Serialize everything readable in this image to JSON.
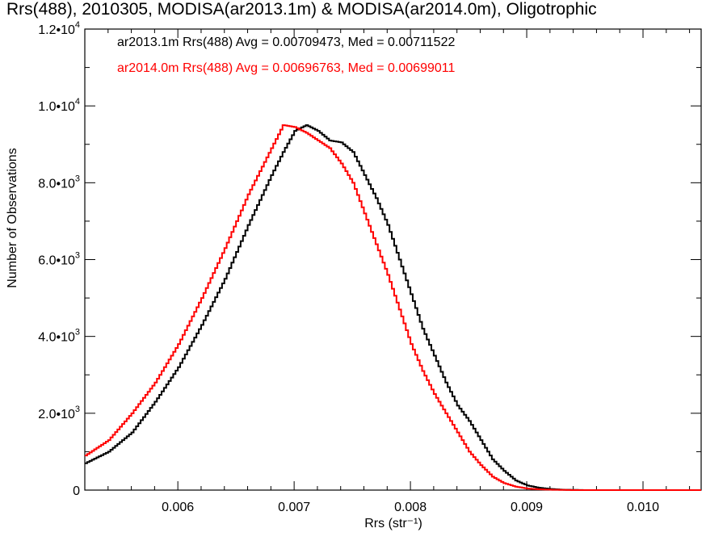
{
  "chart_data": {
    "type": "line",
    "title": "Rrs(488), 2010305, MODISA(ar2013.1m) & MODISA(ar2014.0m), Oligotrophic",
    "xlabel": "Rrs (str⁻¹)",
    "ylabel": "Number of Observations",
    "xlim": [
      0.0052,
      0.0105
    ],
    "ylim": [
      0,
      12000
    ],
    "x_ticks": [
      0.006,
      0.007,
      0.008,
      0.009,
      0.01
    ],
    "x_tick_labels": [
      "0.006",
      "0.007",
      "0.008",
      "0.009",
      "0.010"
    ],
    "y_ticks": [
      0,
      2000,
      4000,
      6000,
      8000,
      10000,
      12000
    ],
    "y_tick_labels": [
      {
        "base": "0",
        "exp": ""
      },
      {
        "base": "2.0•10",
        "exp": "3"
      },
      {
        "base": "4.0•10",
        "exp": "3"
      },
      {
        "base": "6.0•10",
        "exp": "3"
      },
      {
        "base": "8.0•10",
        "exp": "3"
      },
      {
        "base": "1.0•10",
        "exp": "4"
      },
      {
        "base": "1.2•10",
        "exp": "4"
      }
    ],
    "series": [
      {
        "name": "ar2013.1m Rrs(488) Avg = 0.00709473, Med = 0.00711522",
        "color": "#000000",
        "points": [
          [
            0.0052,
            700
          ],
          [
            0.0054,
            1000
          ],
          [
            0.0056,
            1500
          ],
          [
            0.0058,
            2300
          ],
          [
            0.006,
            3200
          ],
          [
            0.0062,
            4300
          ],
          [
            0.0064,
            5500
          ],
          [
            0.0066,
            6900
          ],
          [
            0.0068,
            8200
          ],
          [
            0.0069,
            8800
          ],
          [
            0.007,
            9350
          ],
          [
            0.0071,
            9500
          ],
          [
            0.0072,
            9350
          ],
          [
            0.0073,
            9100
          ],
          [
            0.0074,
            9050
          ],
          [
            0.0075,
            8800
          ],
          [
            0.0076,
            8200
          ],
          [
            0.0077,
            7600
          ],
          [
            0.0078,
            6900
          ],
          [
            0.0079,
            6000
          ],
          [
            0.008,
            5100
          ],
          [
            0.0081,
            4200
          ],
          [
            0.0082,
            3500
          ],
          [
            0.0083,
            2800
          ],
          [
            0.0084,
            2200
          ],
          [
            0.0085,
            1800
          ],
          [
            0.0086,
            1300
          ],
          [
            0.0087,
            800
          ],
          [
            0.0088,
            500
          ],
          [
            0.0089,
            250
          ],
          [
            0.009,
            120
          ],
          [
            0.0091,
            60
          ],
          [
            0.0092,
            30
          ],
          [
            0.0093,
            10
          ],
          [
            0.0095,
            0
          ],
          [
            0.0105,
            0
          ]
        ]
      },
      {
        "name": "ar2014.0m Rrs(488) Avg = 0.00696763, Med = 0.00699011",
        "color": "#ff0000",
        "points": [
          [
            0.0052,
            900
          ],
          [
            0.0054,
            1300
          ],
          [
            0.0056,
            2000
          ],
          [
            0.0058,
            2800
          ],
          [
            0.006,
            3800
          ],
          [
            0.0062,
            5000
          ],
          [
            0.0064,
            6300
          ],
          [
            0.0066,
            7700
          ],
          [
            0.0068,
            8900
          ],
          [
            0.0069,
            9500
          ],
          [
            0.007,
            9450
          ],
          [
            0.0071,
            9300
          ],
          [
            0.0072,
            9100
          ],
          [
            0.0073,
            8900
          ],
          [
            0.0074,
            8500
          ],
          [
            0.0075,
            8000
          ],
          [
            0.0076,
            7200
          ],
          [
            0.0077,
            6400
          ],
          [
            0.0078,
            5600
          ],
          [
            0.0079,
            4700
          ],
          [
            0.008,
            3800
          ],
          [
            0.0081,
            3100
          ],
          [
            0.0082,
            2500
          ],
          [
            0.0083,
            2000
          ],
          [
            0.0084,
            1500
          ],
          [
            0.0085,
            1000
          ],
          [
            0.0086,
            650
          ],
          [
            0.0087,
            350
          ],
          [
            0.0088,
            180
          ],
          [
            0.0089,
            90
          ],
          [
            0.009,
            40
          ],
          [
            0.0091,
            20
          ],
          [
            0.0092,
            10
          ],
          [
            0.0094,
            0
          ],
          [
            0.0105,
            0
          ]
        ]
      }
    ],
    "legend_placement": "top-left",
    "grid": false
  }
}
